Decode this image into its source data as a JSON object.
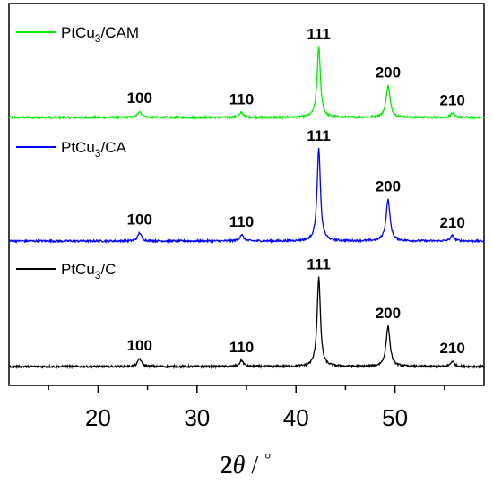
{
  "chart_data": {
    "type": "line",
    "title": "",
    "xlabel": {
      "main": "2",
      "theta": "θ",
      "sep": " / ",
      "unit": "°"
    },
    "ylabel": "",
    "xlim": [
      11,
      59
    ],
    "xticks": [
      20,
      30,
      40,
      50
    ],
    "grid": false,
    "legend_placement": "upper-left of each trace",
    "peaks": [
      {
        "position": 24.2,
        "hkl": "100",
        "relative_height": 0.09
      },
      {
        "position": 34.5,
        "hkl": "110",
        "relative_height": 0.07
      },
      {
        "position": 42.3,
        "hkl": "111",
        "relative_height": 1.0
      },
      {
        "position": 49.3,
        "hkl": "200",
        "relative_height": 0.45
      },
      {
        "position": 55.8,
        "hkl": "210",
        "relative_height": 0.06
      }
    ],
    "series": [
      {
        "name_main": "PtCu",
        "name_sub": "3",
        "name_suffix": "/CAM",
        "color": "#00ee00",
        "intensity": 0.75
      },
      {
        "name_main": "PtCu",
        "name_sub": "3",
        "name_suffix": "/CA",
        "color": "#0000ff",
        "intensity": 0.98
      },
      {
        "name_main": "PtCu",
        "name_sub": "3",
        "name_suffix": "/C",
        "color": "#000000",
        "intensity": 0.95
      }
    ]
  }
}
